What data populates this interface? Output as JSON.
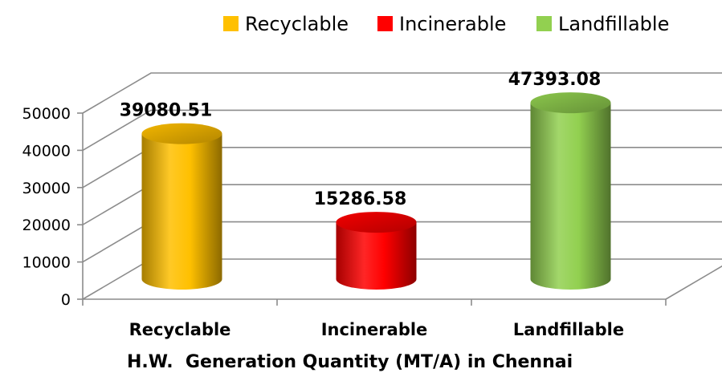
{
  "chart_data": {
    "type": "bar",
    "title": "H.W.  Generation Quantity (MT/A) in Chennai",
    "categories": [
      "Recyclable",
      "Incinerable",
      "Landfillable"
    ],
    "values": [
      39080.51,
      15286.58,
      47393.08
    ],
    "value_labels": [
      "39080.51",
      "15286.58",
      "47393.08"
    ],
    "legend": [
      "Recyclable",
      "Incinerable",
      "Landfillable"
    ],
    "legend_position": "top-right",
    "ylim": [
      0,
      50000
    ],
    "yticks": [
      "0",
      "10000",
      "20000",
      "30000",
      "40000",
      "50000"
    ],
    "ytick_values": [
      0,
      10000,
      20000,
      30000,
      40000,
      50000
    ],
    "grid": true,
    "style": "3d-cylinder",
    "colors": [
      "#FFC000",
      "#FF0000",
      "#92D050"
    ]
  }
}
